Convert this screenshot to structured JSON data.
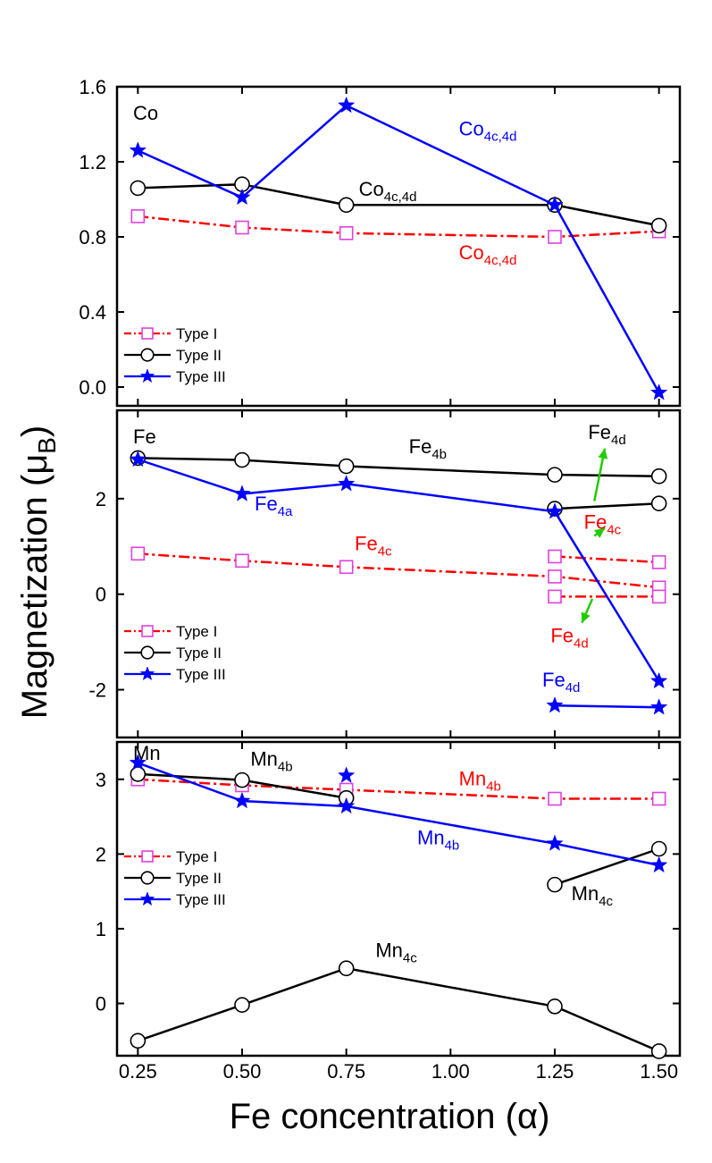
{
  "figure": {
    "ylabel": "Magnetization (μ",
    "ylabel_sub": "B",
    "ylabel_close": ")",
    "xlabel": "Fe concentration (α)",
    "xticks": [
      "0.25",
      "0.50",
      "0.75",
      "1.00",
      "1.25",
      "1.50"
    ],
    "xlim": [
      0.2,
      1.55
    ],
    "xtick_values": [
      0.25,
      0.5,
      0.75,
      1.0,
      1.25,
      1.5
    ]
  },
  "colors": {
    "type1": "#ff0000",
    "type1_marker": "#e040e0",
    "type2": "#000000",
    "type3": "#0000ff",
    "arrow": "#22cc00"
  },
  "chart_data": [
    {
      "type": "line",
      "panel": "Co",
      "ylim": [
        -0.1,
        1.6
      ],
      "yticks": [
        0.0,
        0.4,
        0.8,
        1.2,
        1.6
      ],
      "ytick_labels": [
        "0.0",
        "0.4",
        "0.8",
        "1.2",
        "1.6"
      ],
      "panel_label": "Co",
      "legend": {
        "placement": "bottom-left",
        "entries": [
          "Type I",
          "Type II",
          "Type III"
        ]
      },
      "series": [
        {
          "name": "Type I",
          "style": "type1",
          "x": [
            0.25,
            0.5,
            0.75,
            1.25,
            1.5
          ],
          "y": [
            0.91,
            0.85,
            0.82,
            0.8,
            0.83
          ]
        },
        {
          "name": "Type II",
          "style": "type2",
          "x": [
            0.25,
            0.5,
            0.75,
            1.25,
            1.5
          ],
          "y": [
            1.06,
            1.08,
            0.97,
            0.97,
            0.86
          ]
        },
        {
          "name": "Type III",
          "style": "type3",
          "x": [
            0.25,
            0.5,
            0.75,
            1.25,
            1.5
          ],
          "y": [
            1.26,
            1.01,
            1.5,
            0.97,
            -0.03
          ]
        }
      ],
      "annotations": [
        {
          "base": "Co",
          "sub": "4c,4d",
          "x": 1.02,
          "y": 1.34,
          "color": "type3"
        },
        {
          "base": "Co",
          "sub": "4c,4d",
          "x": 0.78,
          "y": 1.02,
          "color": "type2"
        },
        {
          "base": "Co",
          "sub": "4c,4d",
          "x": 1.02,
          "y": 0.68,
          "color": "type1"
        }
      ]
    },
    {
      "type": "line",
      "panel": "Fe",
      "ylim": [
        -3.0,
        3.85
      ],
      "yticks": [
        -2,
        0,
        2
      ],
      "ytick_labels": [
        "-2",
        "0",
        "2"
      ],
      "panel_label": "Fe",
      "legend": {
        "placement": "bottom-left",
        "entries": [
          "Type I",
          "Type II",
          "Type III"
        ]
      },
      "series": [
        {
          "name": "Type I",
          "style": "type1",
          "x": [
            0.25,
            0.5,
            0.75,
            1.25,
            1.5
          ],
          "y": [
            0.85,
            0.7,
            0.57,
            0.37,
            0.14
          ]
        },
        {
          "name": "Type I",
          "style": "type1",
          "x": [
            1.25,
            1.5
          ],
          "y": [
            0.79,
            0.67
          ]
        },
        {
          "name": "Type I",
          "style": "type1",
          "x": [
            1.25,
            1.5
          ],
          "y": [
            -0.05,
            -0.05
          ]
        },
        {
          "name": "Type II",
          "style": "type2",
          "x": [
            0.25,
            0.5,
            0.75,
            1.25,
            1.5
          ],
          "y": [
            2.85,
            2.81,
            2.68,
            2.5,
            2.47
          ]
        },
        {
          "name": "Type II",
          "style": "type2",
          "x": [
            1.25,
            1.5
          ],
          "y": [
            1.79,
            1.9
          ]
        },
        {
          "name": "Type III",
          "style": "type3",
          "x": [
            0.25,
            0.5,
            0.75,
            1.25,
            1.5
          ],
          "y": [
            2.82,
            2.1,
            2.31,
            1.73,
            -1.82
          ]
        },
        {
          "name": "Type III",
          "style": "type3",
          "x": [
            1.25,
            1.5
          ],
          "y": [
            -2.33,
            -2.37
          ]
        }
      ],
      "annotations": [
        {
          "base": "Fe",
          "sub": "4b",
          "x": 0.9,
          "y": 2.95,
          "color": "type2"
        },
        {
          "base": "Fe",
          "sub": "4a",
          "x": 0.53,
          "y": 1.75,
          "color": "type3"
        },
        {
          "base": "Fe",
          "sub": "4c",
          "x": 0.77,
          "y": 0.92,
          "color": "type1"
        },
        {
          "base": "Fe",
          "sub": "4d",
          "x": 1.33,
          "y": 3.25,
          "color": "type2"
        },
        {
          "base": "Fe",
          "sub": "4c",
          "x": 1.32,
          "y": 1.37,
          "color": "type1"
        },
        {
          "base": "Fe",
          "sub": "4d",
          "x": 1.24,
          "y": -1.01,
          "color": "type1"
        },
        {
          "base": "Fe",
          "sub": "4d",
          "x": 1.22,
          "y": -1.93,
          "color": "type3"
        }
      ],
      "arrows": [
        {
          "from": [
            1.345,
            1.95
          ],
          "to": [
            1.37,
            3.05
          ]
        },
        {
          "from": [
            1.345,
            1.22
          ],
          "to": [
            1.37,
            1.38
          ]
        },
        {
          "from": [
            1.34,
            -0.1
          ],
          "to": [
            1.315,
            -0.6
          ]
        }
      ]
    },
    {
      "type": "line",
      "panel": "Mn",
      "ylim": [
        -0.7,
        3.5
      ],
      "yticks": [
        0,
        1,
        2,
        3
      ],
      "ytick_labels": [
        "0",
        "1",
        "2",
        "3"
      ],
      "panel_label": "Mn",
      "legend": {
        "placement": "left",
        "entries": [
          "Type I",
          "Type II",
          "Type III"
        ]
      },
      "series": [
        {
          "name": "Type I",
          "style": "type1",
          "x": [
            0.25,
            0.5,
            0.75,
            1.25,
            1.5
          ],
          "y": [
            3.0,
            2.92,
            2.86,
            2.74,
            2.74
          ]
        },
        {
          "name": "Type II",
          "style": "type2",
          "x": [
            0.25,
            0.5,
            0.75
          ],
          "y": [
            3.07,
            2.99,
            2.75
          ]
        },
        {
          "name": "Type II",
          "style": "type2",
          "x": [
            0.25,
            0.5,
            0.75,
            1.25,
            1.5
          ],
          "y": [
            -0.5,
            -0.02,
            0.47,
            -0.04,
            -0.64
          ]
        },
        {
          "name": "Type II",
          "style": "type2",
          "x": [
            1.25,
            1.5
          ],
          "y": [
            1.59,
            2.07
          ]
        },
        {
          "name": "Type III",
          "style": "type3",
          "x": [
            0.25,
            0.5,
            0.75,
            1.25,
            1.5
          ],
          "y": [
            3.22,
            2.71,
            2.64,
            2.14,
            1.85
          ]
        },
        {
          "name": "Type III",
          "style": "type3",
          "x": [
            0.75
          ],
          "y": [
            3.05
          ],
          "markers_only": true
        }
      ],
      "annotations": [
        {
          "base": "Mn",
          "sub": "4b",
          "x": 0.52,
          "y": 3.18,
          "color": "type2"
        },
        {
          "base": "Mn",
          "sub": "4b",
          "x": 1.02,
          "y": 2.92,
          "color": "type1"
        },
        {
          "base": "Mn",
          "sub": "4b",
          "x": 0.92,
          "y": 2.13,
          "color": "type3"
        },
        {
          "base": "Mn",
          "sub": "4c",
          "x": 1.29,
          "y": 1.38,
          "color": "type2"
        },
        {
          "base": "Mn",
          "sub": "4c",
          "x": 0.82,
          "y": 0.62,
          "color": "type2"
        }
      ]
    }
  ]
}
